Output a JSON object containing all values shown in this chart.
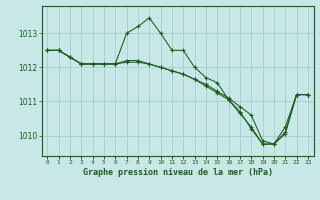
{
  "background_color": "#c8e8e8",
  "grid_color": "#a0c8c8",
  "line_color": "#1a5c1a",
  "title": "Graphe pression niveau de la mer (hPa)",
  "ylim": [
    1009.4,
    1013.8
  ],
  "yticks": [
    1010,
    1011,
    1012,
    1013
  ],
  "series": [
    [
      1012.5,
      1012.5,
      1012.3,
      1012.1,
      1012.1,
      1012.1,
      1012.1,
      1013.0,
      1013.2,
      1013.45,
      1013.0,
      1012.5,
      1012.5,
      1012.0,
      1011.7,
      1011.55,
      1011.05,
      1010.65,
      1010.25,
      1009.75,
      1009.75,
      1010.25,
      1011.2,
      1011.2
    ],
    [
      1012.5,
      1012.5,
      1012.3,
      1012.1,
      1012.1,
      1012.1,
      1012.1,
      1012.2,
      1012.2,
      1012.1,
      1012.0,
      1011.9,
      1011.8,
      1011.65,
      1011.5,
      1011.3,
      1011.1,
      1010.85,
      1010.6,
      1009.85,
      1009.75,
      1010.1,
      1011.2,
      1011.2
    ],
    [
      1012.5,
      1012.5,
      1012.3,
      1012.1,
      1012.1,
      1012.1,
      1012.1,
      1012.15,
      1012.15,
      1012.1,
      1012.0,
      1011.9,
      1011.8,
      1011.65,
      1011.45,
      1011.25,
      1011.05,
      1010.7,
      1010.2,
      1009.75,
      1009.75,
      1010.05,
      1011.2,
      1011.2
    ]
  ]
}
